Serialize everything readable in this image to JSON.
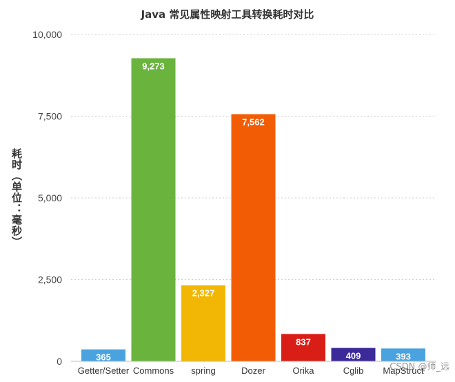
{
  "chart_data": {
    "type": "bar",
    "title": "Java 常见属性映射工具转换耗时对比",
    "xlabel": "",
    "ylabel": "耗时（单位：毫秒）",
    "ylim": [
      0,
      10000
    ],
    "yticks": [
      0,
      2500,
      5000,
      7500,
      10000
    ],
    "ytick_labels": [
      "0",
      "2,500",
      "5,000",
      "7,500",
      "10,000"
    ],
    "grid": true,
    "categories": [
      "Getter/Setter",
      "Commons",
      "spring",
      "Dozer",
      "Orika",
      "Cglib",
      "MapStruct"
    ],
    "values": [
      365,
      9273,
      2327,
      7562,
      837,
      409,
      393
    ],
    "value_labels": [
      "365",
      "9,273",
      "2,327",
      "7,562",
      "837",
      "409",
      "393"
    ],
    "colors": [
      "#4aa3df",
      "#6ab43e",
      "#f2b705",
      "#f25c05",
      "#d91e18",
      "#3c2a9a",
      "#4aa3df"
    ]
  },
  "watermark": "CSDN @师_远"
}
